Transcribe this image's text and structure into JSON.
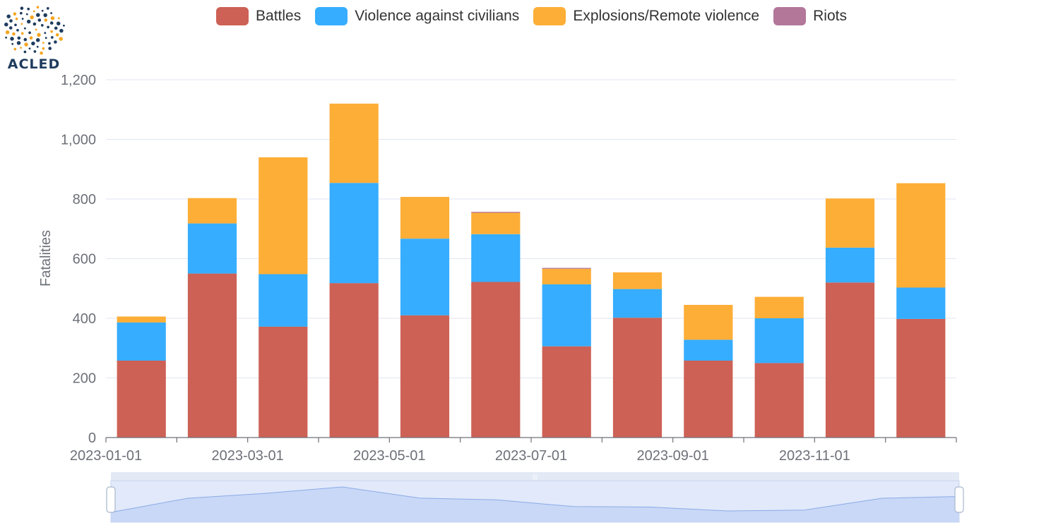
{
  "logo": {
    "text": "ACLED"
  },
  "chart_data": {
    "type": "bar",
    "stacked": true,
    "categories": [
      "2023-01-01",
      "2023-02-01",
      "2023-03-01",
      "2023-04-01",
      "2023-05-01",
      "2023-06-01",
      "2023-07-01",
      "2023-08-01",
      "2023-09-01",
      "2023-10-01",
      "2023-11-01",
      "2023-12-01"
    ],
    "x_tick_labels": [
      "2023-01-01",
      "2023-03-01",
      "2023-05-01",
      "2023-07-01",
      "2023-09-01",
      "2023-11-01"
    ],
    "series": [
      {
        "name": "Battles",
        "color": "#cd6155",
        "values": [
          258,
          550,
          372,
          518,
          410,
          522,
          306,
          402,
          258,
          250,
          520,
          398
        ]
      },
      {
        "name": "Violence against civilians",
        "color": "#36adff",
        "values": [
          128,
          168,
          176,
          336,
          257,
          160,
          208,
          96,
          70,
          150,
          117,
          105
        ]
      },
      {
        "name": "Explosions/Remote violence",
        "color": "#fdae37",
        "values": [
          20,
          85,
          392,
          266,
          140,
          72,
          52,
          56,
          117,
          72,
          165,
          350
        ]
      },
      {
        "name": "Riots",
        "color": "#b3779a",
        "values": [
          0,
          0,
          0,
          0,
          0,
          3,
          3,
          0,
          0,
          0,
          0,
          0
        ]
      }
    ],
    "ylabel": "Fatalities",
    "ylim": [
      0,
      1200
    ],
    "y_ticks": [
      0,
      200,
      400,
      600,
      800,
      1000,
      1200
    ],
    "y_tick_labels": [
      "0",
      "200",
      "400",
      "600",
      "800",
      "1,000",
      "1,200"
    ],
    "grid": true,
    "legend_position": "top-center",
    "data_zoom_slider": true
  }
}
